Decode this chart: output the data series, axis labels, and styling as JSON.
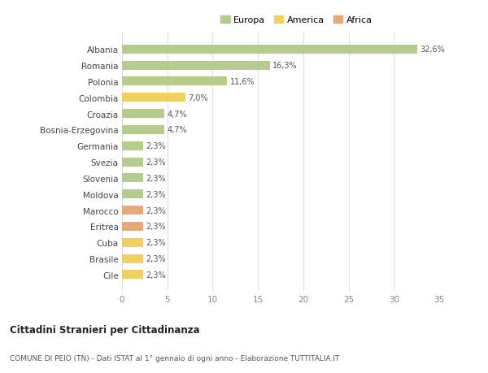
{
  "categories": [
    "Albania",
    "Romania",
    "Polonia",
    "Colombia",
    "Croazia",
    "Bosnia-Erzegovina",
    "Germania",
    "Svezia",
    "Slovenia",
    "Moldova",
    "Marocco",
    "Eritrea",
    "Cuba",
    "Brasile",
    "Cile"
  ],
  "values": [
    32.6,
    16.3,
    11.6,
    7.0,
    4.7,
    4.7,
    2.3,
    2.3,
    2.3,
    2.3,
    2.3,
    2.3,
    2.3,
    2.3,
    2.3
  ],
  "labels": [
    "32,6%",
    "16,3%",
    "11,6%",
    "7,0%",
    "4,7%",
    "4,7%",
    "2,3%",
    "2,3%",
    "2,3%",
    "2,3%",
    "2,3%",
    "2,3%",
    "2,3%",
    "2,3%",
    "2,3%"
  ],
  "continent": [
    "Europa",
    "Europa",
    "Europa",
    "America",
    "Europa",
    "Europa",
    "Europa",
    "Europa",
    "Europa",
    "Europa",
    "Africa",
    "Africa",
    "America",
    "America",
    "America"
  ],
  "color_europa": "#b5cc8e",
  "color_america": "#f0d060",
  "color_africa": "#e8a878",
  "background_color": "#ffffff",
  "grid_color": "#e0e0e0",
  "title": "Cittadini Stranieri per Cittadinanza",
  "subtitle": "COMUNE DI PEIO (TN) - Dati ISTAT al 1° gennaio di ogni anno - Elaborazione TUTTITALIA.IT",
  "xlim": [
    0,
    35
  ],
  "xticks": [
    0,
    5,
    10,
    15,
    20,
    25,
    30,
    35
  ],
  "legend_labels": [
    "Europa",
    "America",
    "Africa"
  ],
  "legend_colors": [
    "#b5cc8e",
    "#f0d060",
    "#e8a878"
  ]
}
